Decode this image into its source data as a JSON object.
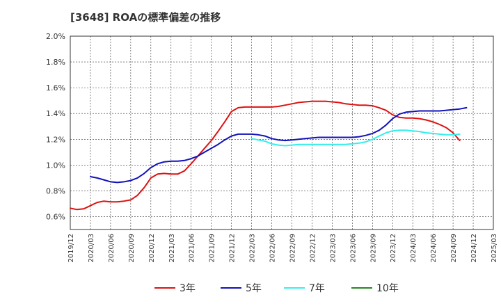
{
  "chart_data": {
    "type": "line",
    "title": "[3648]  ROAの標準偏差の推移",
    "xlabel": "",
    "ylabel": "",
    "ylim": [
      0.5,
      2.0
    ],
    "yticks": [
      "0.6%",
      "0.8%",
      "1.0%",
      "1.2%",
      "1.4%",
      "1.6%",
      "1.8%",
      "2.0%"
    ],
    "ytick_values": [
      0.6,
      0.8,
      1.0,
      1.2,
      1.4,
      1.6,
      1.8,
      2.0
    ],
    "xticks": [
      "2019/12",
      "2020/03",
      "2020/06",
      "2020/09",
      "2020/12",
      "2021/03",
      "2021/06",
      "2021/09",
      "2021/12",
      "2022/03",
      "2022/06",
      "2022/09",
      "2022/12",
      "2023/03",
      "2023/06",
      "2023/09",
      "2023/12",
      "2024/03",
      "2024/06",
      "2024/09",
      "2024/12",
      "2025/03"
    ],
    "grid": true,
    "legend_position": "bottom",
    "series": [
      {
        "name": "3年",
        "color": "#dd1111",
        "start_index": 0,
        "values": [
          0.665,
          0.655,
          0.66,
          0.685,
          0.71,
          0.72,
          0.715,
          0.715,
          0.72,
          0.73,
          0.765,
          0.825,
          0.9,
          0.93,
          0.935,
          0.93,
          0.93,
          0.955,
          1.01,
          1.07,
          1.13,
          1.19,
          1.26,
          1.335,
          1.415,
          1.445,
          1.45,
          1.45,
          1.45,
          1.45,
          1.45,
          1.455,
          1.465,
          1.475,
          1.485,
          1.49,
          1.495,
          1.495,
          1.495,
          1.49,
          1.485,
          1.475,
          1.47,
          1.465,
          1.465,
          1.46,
          1.445,
          1.425,
          1.39,
          1.37,
          1.365,
          1.365,
          1.36,
          1.35,
          1.335,
          1.315,
          1.29,
          1.25,
          1.19
        ]
      },
      {
        "name": "5年",
        "color": "#1111bb",
        "start_index": 3,
        "values": [
          0.91,
          0.9,
          0.885,
          0.87,
          0.865,
          0.87,
          0.88,
          0.9,
          0.935,
          0.98,
          1.01,
          1.025,
          1.03,
          1.03,
          1.035,
          1.05,
          1.07,
          1.1,
          1.13,
          1.16,
          1.195,
          1.225,
          1.24,
          1.24,
          1.24,
          1.235,
          1.225,
          1.205,
          1.195,
          1.19,
          1.195,
          1.2,
          1.205,
          1.21,
          1.215,
          1.215,
          1.215,
          1.215,
          1.215,
          1.215,
          1.22,
          1.23,
          1.245,
          1.27,
          1.31,
          1.36,
          1.395,
          1.41,
          1.415,
          1.42,
          1.42,
          1.42,
          1.42,
          1.425,
          1.43,
          1.435,
          1.445
        ]
      },
      {
        "name": "7年",
        "color": "#33eeee",
        "start_index": 27,
        "values": [
          1.205,
          1.195,
          1.185,
          1.165,
          1.155,
          1.15,
          1.155,
          1.16,
          1.16,
          1.16,
          1.16,
          1.16,
          1.16,
          1.16,
          1.16,
          1.165,
          1.17,
          1.18,
          1.2,
          1.225,
          1.25,
          1.265,
          1.27,
          1.27,
          1.265,
          1.26,
          1.25,
          1.245,
          1.24,
          1.235,
          1.235,
          1.24
        ]
      },
      {
        "name": "10年",
        "color": "#228822",
        "start_index": 0,
        "values": []
      }
    ]
  }
}
